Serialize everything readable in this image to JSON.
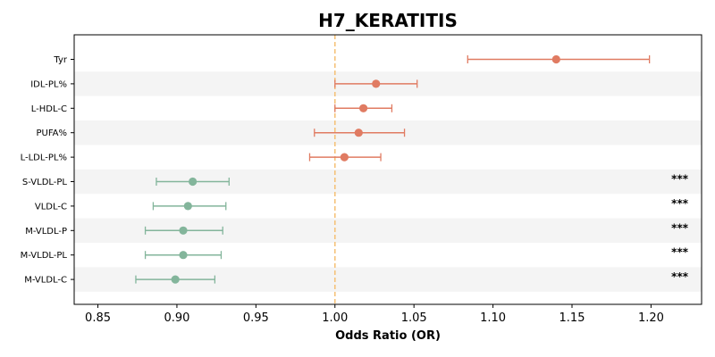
{
  "chart_data": {
    "type": "forest",
    "title": "H7_KERATITIS",
    "xlabel": "Odds Ratio (OR)",
    "ylabel": "",
    "xlim": [
      0.835,
      1.232
    ],
    "xticks": [
      "0.85",
      "0.90",
      "0.95",
      "1.00",
      "1.05",
      "1.10",
      "1.15",
      "1.20"
    ],
    "reference_line": 1.0,
    "grid": false,
    "colors": {
      "risk": "#e07b62",
      "protective": "#83b59b",
      "reference": "#f5c27a",
      "band": "#f4f4f4"
    },
    "rows": [
      {
        "label": "Tyr",
        "or": 1.14,
        "lo": 1.084,
        "hi": 1.199,
        "group": "risk",
        "sig": ""
      },
      {
        "label": "IDL-PL%",
        "or": 1.026,
        "lo": 1.0,
        "hi": 1.052,
        "group": "risk",
        "sig": ""
      },
      {
        "label": "L-HDL-C",
        "or": 1.018,
        "lo": 1.0,
        "hi": 1.036,
        "group": "risk",
        "sig": ""
      },
      {
        "label": "PUFA%",
        "or": 1.015,
        "lo": 0.987,
        "hi": 1.044,
        "group": "risk",
        "sig": ""
      },
      {
        "label": "L-LDL-PL%",
        "or": 1.006,
        "lo": 0.984,
        "hi": 1.029,
        "group": "risk",
        "sig": ""
      },
      {
        "label": "S-VLDL-PL",
        "or": 0.91,
        "lo": 0.887,
        "hi": 0.933,
        "group": "protective",
        "sig": "***"
      },
      {
        "label": "VLDL-C",
        "or": 0.907,
        "lo": 0.885,
        "hi": 0.931,
        "group": "protective",
        "sig": "***"
      },
      {
        "label": "M-VLDL-P",
        "or": 0.904,
        "lo": 0.88,
        "hi": 0.929,
        "group": "protective",
        "sig": "***"
      },
      {
        "label": "M-VLDL-PL",
        "or": 0.904,
        "lo": 0.88,
        "hi": 0.928,
        "group": "protective",
        "sig": "***"
      },
      {
        "label": "M-VLDL-C",
        "or": 0.899,
        "lo": 0.874,
        "hi": 0.924,
        "group": "protective",
        "sig": "***"
      }
    ]
  }
}
